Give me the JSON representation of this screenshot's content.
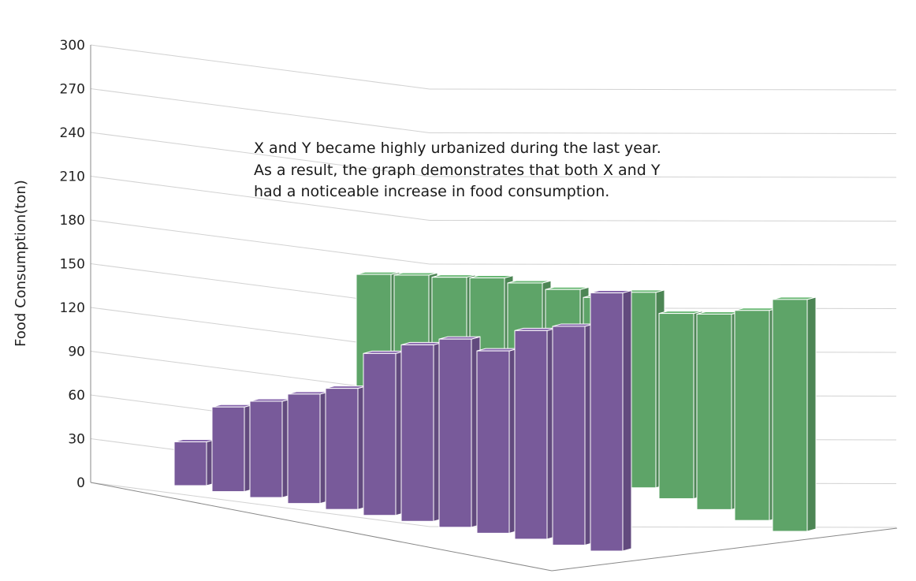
{
  "chart_data": {
    "type": "bar",
    "projection": "3d",
    "title": "",
    "ylabel": "Food Consumption(ton)",
    "xlabel": "",
    "ylim": [
      0,
      300
    ],
    "yticks": [
      0,
      30,
      60,
      90,
      120,
      150,
      180,
      210,
      240,
      270,
      300
    ],
    "grid": true,
    "colors": {
      "purple": "#785a9a",
      "green": "#5ea468"
    },
    "series": [
      {
        "values": [
          30,
          58,
          66,
          75,
          83,
          111,
          121,
          129,
          125,
          143,
          150,
          177
        ],
        "color": "#785a9a"
      },
      {
        "values": [
          94,
          101,
          107,
          114,
          118,
          121,
          123,
          134,
          127,
          134,
          144,
          159
        ],
        "color": "#5ea468"
      }
    ],
    "annotations": [
      "X and Y became highly urbanized during the last year.",
      "As a result, the graph demonstrates that both X and Y",
      "had a noticeable increase in food consumption."
    ]
  }
}
